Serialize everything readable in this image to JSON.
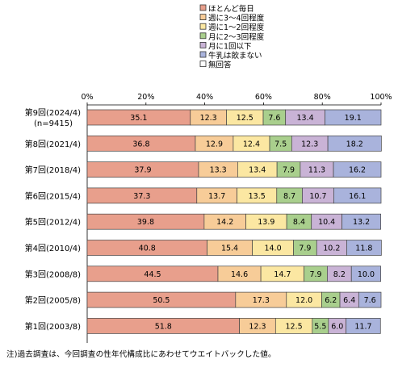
{
  "chart_data": {
    "type": "bar",
    "stacked": true,
    "orientation": "horizontal",
    "normalized_percent": true,
    "categories": [
      "第9回(2024/4)",
      "第8回(2021/4)",
      "第7回(2018/4)",
      "第6回(2015/4)",
      "第5回(2012/4)",
      "第4回(2010/4)",
      "第3回(2008/8)",
      "第2回(2005/8)",
      "第1回(2003/8)"
    ],
    "category_sublabels": [
      "(n=9415)",
      "",
      "",
      "",
      "",
      "",
      "",
      "",
      ""
    ],
    "series": [
      {
        "name": "ほとんど毎日",
        "color": "#e89f8c",
        "values": [
          35.1,
          36.8,
          37.9,
          37.3,
          39.8,
          40.8,
          44.5,
          50.5,
          51.8
        ]
      },
      {
        "name": "週に3〜4回程度",
        "color": "#f7cc98",
        "values": [
          12.3,
          12.9,
          13.3,
          13.7,
          14.2,
          15.4,
          14.6,
          17.3,
          12.3
        ]
      },
      {
        "name": "週に1〜2回程度",
        "color": "#fbe7a2",
        "values": [
          12.5,
          12.4,
          13.4,
          13.5,
          13.9,
          14.0,
          14.7,
          12.0,
          12.5
        ]
      },
      {
        "name": "月に2〜3回程度",
        "color": "#a9cf8d",
        "values": [
          7.6,
          7.5,
          7.9,
          8.7,
          8.4,
          7.9,
          7.9,
          6.2,
          5.5
        ]
      },
      {
        "name": "月に1回以下",
        "color": "#c9b3d6",
        "values": [
          13.4,
          12.3,
          11.3,
          10.7,
          10.4,
          10.2,
          8.2,
          6.4,
          6.0
        ]
      },
      {
        "name": "牛乳は飲まない",
        "color": "#a9b3dc",
        "values": [
          19.1,
          18.2,
          16.2,
          16.1,
          13.2,
          11.8,
          10.0,
          7.6,
          11.7
        ]
      },
      {
        "name": "無回答",
        "color": "#ffffff",
        "values": [
          0,
          0,
          0,
          0,
          0,
          0,
          0,
          0,
          0
        ]
      }
    ],
    "xlim": [
      0,
      100
    ],
    "xticks": [
      "0%",
      "20%",
      "40%",
      "60%",
      "80%",
      "100%"
    ],
    "legend_position": "top-center",
    "grid": false,
    "note": "注)過去調査は、今回調査の性年代構成比にあわせてウエイトバックした値。"
  }
}
